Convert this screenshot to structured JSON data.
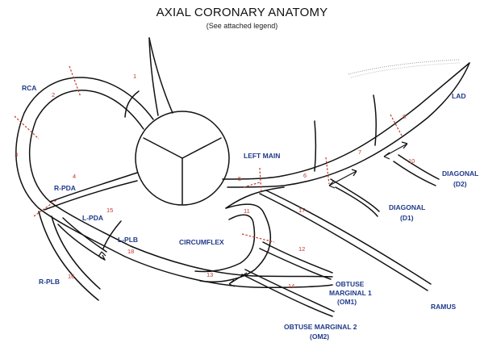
{
  "header": {
    "title": "AXIAL CORONARY ANATOMY",
    "subtitle": "(See attached legend)"
  },
  "vessel_labels": {
    "rca": "RCA",
    "lad": "LAD",
    "left_main": "LEFT MAIN",
    "diagonal_d2_name": "DIAGONAL",
    "diagonal_d2_code": "(D2)",
    "diagonal_d1_name": "DIAGONAL",
    "diagonal_d1_code": "(D1)",
    "r_pda": "R-PDA",
    "l_pda": "L-PDA",
    "l_plb": "L-PLB",
    "r_plb": "R-PLB",
    "circumflex": "CIRCUMFLEX",
    "om1_line1": "OBTUSE",
    "om1_line2": "MARGINAL 1",
    "om1_line3": "(OM1)",
    "ramus": "RAMUS",
    "om2_line1": "OBTUSE MARGINAL 2",
    "om2_line2": "(OM2)"
  },
  "segments": {
    "s1": "1",
    "s2": "2",
    "s3": "3",
    "s4": "4",
    "s5": "5",
    "s6": "6",
    "s7": "7",
    "s8": "8",
    "s10": "10",
    "s11": "11",
    "s12": "12",
    "s13": "13",
    "s14": "14",
    "s15": "15",
    "s16": "16",
    "s17": "17",
    "s18": "18"
  },
  "colors": {
    "label": "#1f3a8a",
    "segment_number": "#c0392b",
    "cut_line": "#c0392b",
    "outline": "#111111"
  }
}
